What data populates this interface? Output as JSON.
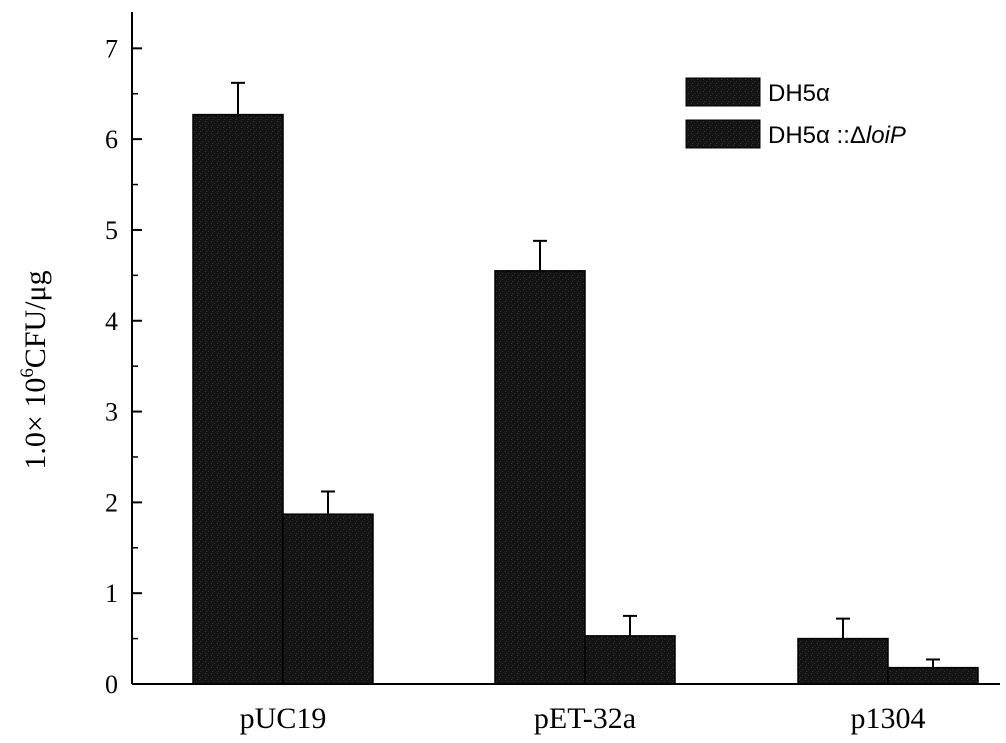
{
  "chart_data": {
    "type": "bar",
    "title": "",
    "xlabel": "",
    "ylabel": {
      "prefix": "1.0× 10",
      "superscript": "6",
      "suffix": "CFU/μg"
    },
    "ylim": [
      0,
      7.4
    ],
    "yticks": [
      0,
      1,
      2,
      3,
      4,
      5,
      6,
      7
    ],
    "categories": [
      "pUC19",
      "pET-32a",
      "p1304"
    ],
    "series": [
      {
        "name": "DH5α",
        "values": [
          6.27,
          4.55,
          0.5
        ],
        "errors": [
          0.35,
          0.33,
          0.22
        ],
        "color": "#111111"
      },
      {
        "name": "DH5α ::Δ",
        "name_italic": "loiP",
        "values": [
          1.87,
          0.53,
          0.18
        ],
        "errors": [
          0.25,
          0.22,
          0.09
        ],
        "color": "#111111"
      }
    ],
    "legend": {
      "position": "top-right"
    },
    "grid": false
  }
}
